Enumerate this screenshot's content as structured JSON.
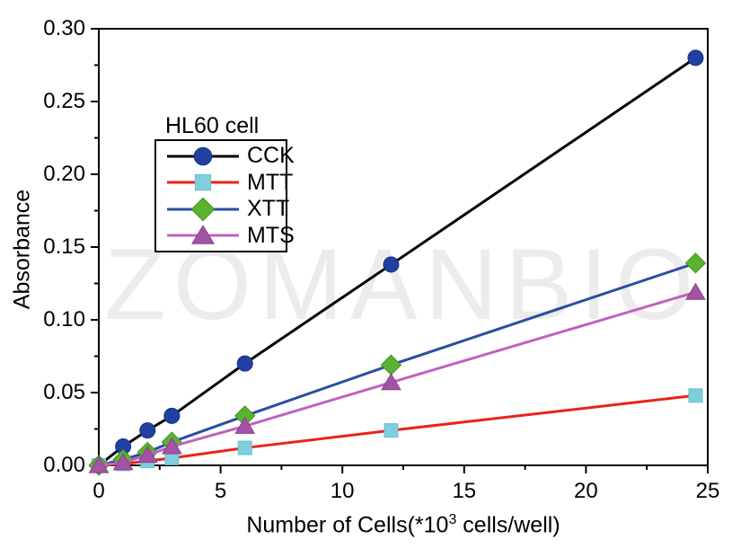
{
  "watermark": "ZOMANBIO",
  "chart_data": {
    "type": "line",
    "title": "",
    "ylabel": "Absorbance",
    "xlabel_prefix": "Number of Cells(*10",
    "xlabel_sup": "3",
    "xlabel_suffix": " cells/well)",
    "xlim": [
      0,
      25
    ],
    "ylim": [
      0.0,
      0.3
    ],
    "grid": false,
    "x_ticks": {
      "values": [
        0,
        5,
        10,
        15,
        20,
        25
      ],
      "labels": [
        "0",
        "5",
        "10",
        "15",
        "20",
        "25"
      ]
    },
    "x_minor_ticks": [
      2.5,
      7.5,
      12.5,
      17.5,
      22.5
    ],
    "y_ticks": {
      "values": [
        0.0,
        0.05,
        0.1,
        0.15,
        0.2,
        0.25,
        0.3
      ],
      "labels": [
        "0.00",
        "0.05",
        "0.10",
        "0.15",
        "0.20",
        "0.25",
        "0.30"
      ]
    },
    "y_minor_ticks": [
      0.025,
      0.075,
      0.125,
      0.175,
      0.225,
      0.275
    ],
    "legend": {
      "title": "HL60 cell",
      "position": "inside-upper-left"
    },
    "x": [
      0,
      1,
      2,
      3,
      6,
      12,
      24.5
    ],
    "series": [
      {
        "name": "CCK",
        "marker": "circle",
        "line_color": "#000000",
        "marker_color": "#2140A2",
        "marker_edge": "#16327F",
        "values": [
          0,
          0.013,
          0.024,
          0.034,
          0.07,
          0.138,
          0.28
        ]
      },
      {
        "name": "MTT",
        "marker": "square",
        "line_color": "#E8231A",
        "marker_color": "#7FCEDB",
        "marker_edge": "#6ABFCF",
        "values": [
          0,
          0.001,
          0.003,
          0.005,
          0.012,
          0.024,
          0.048
        ]
      },
      {
        "name": "XTT",
        "marker": "diamond",
        "line_color": "#2B4EA2",
        "marker_color": "#5BB231",
        "marker_edge": "#43931D",
        "values": [
          0,
          0.004,
          0.009,
          0.016,
          0.034,
          0.069,
          0.139
        ]
      },
      {
        "name": "MTS",
        "marker": "triangle",
        "line_color": "#BE62BE",
        "marker_color": "#A452A4",
        "marker_edge": "#8A3F8C",
        "values": [
          0,
          0.002,
          0.007,
          0.013,
          0.027,
          0.057,
          0.119
        ]
      }
    ]
  }
}
